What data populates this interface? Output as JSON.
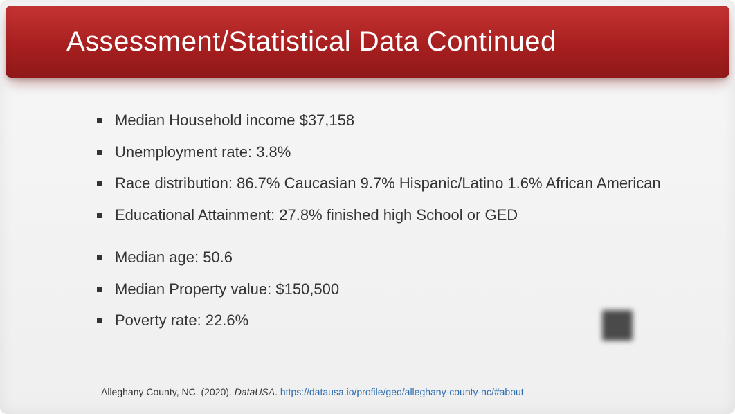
{
  "slide": {
    "title": "Assessment/Statistical Data Continued",
    "colors": {
      "header_gradient_top": "#c53434",
      "header_gradient_mid": "#a81f1f",
      "header_gradient_bottom": "#8f1919",
      "title_text": "#ffffff",
      "body_text": "#333333",
      "link_text": "#2b6cb0",
      "background_top": "#f7f7f7",
      "background_bottom": "#efefef",
      "bullet_marker": "#333333"
    },
    "typography": {
      "title_fontsize": 40,
      "body_fontsize": 22,
      "citation_fontsize": 14,
      "font_family": "Segoe UI"
    },
    "bullets_group1": [
      "Median Household income $37,158",
      "Unemployment rate: 3.8%",
      "Race distribution: 86.7% Caucasian 9.7% Hispanic/Latino 1.6% African American",
      "Educational Attainment: 27.8% finished high School or GED"
    ],
    "bullets_group2": [
      "Median age: 50.6",
      "Median Property value: $150,500",
      "Poverty rate: 22.6%"
    ],
    "citation": {
      "prefix": "Alleghany County, NC. (2020). ",
      "source_italic": "DataUSA",
      "separator": ". ",
      "url": "https://datausa.io/profile/geo/alleghany-county-nc/#about"
    }
  }
}
